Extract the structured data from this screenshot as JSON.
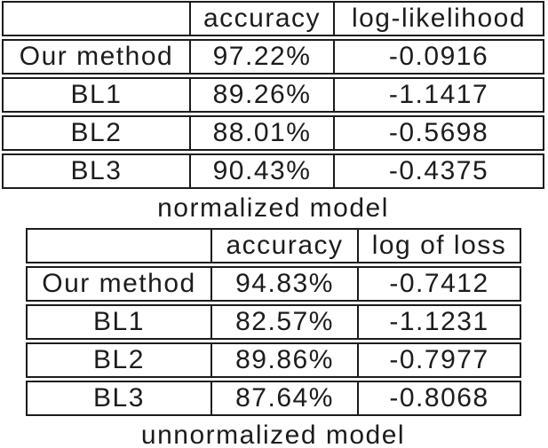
{
  "page": {
    "background_color": "#ffffff",
    "text_color": "#1c1c1c",
    "border_color": "#1c1c1c"
  },
  "tables": [
    {
      "caption": "normalized model",
      "columns": [
        "",
        "accuracy",
        "log-likelihood"
      ],
      "rows": [
        {
          "label": "Our method",
          "accuracy": "97.22%",
          "metric": "-0.0916"
        },
        {
          "label": "BL1",
          "accuracy": "89.26%",
          "metric": "-1.1417"
        },
        {
          "label": "BL2",
          "accuracy": "88.01%",
          "metric": "-0.5698"
        },
        {
          "label": "BL3",
          "accuracy": "90.43%",
          "metric": "-0.4375"
        }
      ]
    },
    {
      "caption": "unnormalized model",
      "columns": [
        "",
        "accuracy",
        "log of loss"
      ],
      "rows": [
        {
          "label": "Our method",
          "accuracy": "94.83%",
          "metric": "-0.7412"
        },
        {
          "label": "BL1",
          "accuracy": "82.57%",
          "metric": "-1.1231"
        },
        {
          "label": "BL2",
          "accuracy": "89.86%",
          "metric": "-0.7977"
        },
        {
          "label": "BL3",
          "accuracy": "87.64%",
          "metric": "-0.8068"
        }
      ]
    }
  ]
}
